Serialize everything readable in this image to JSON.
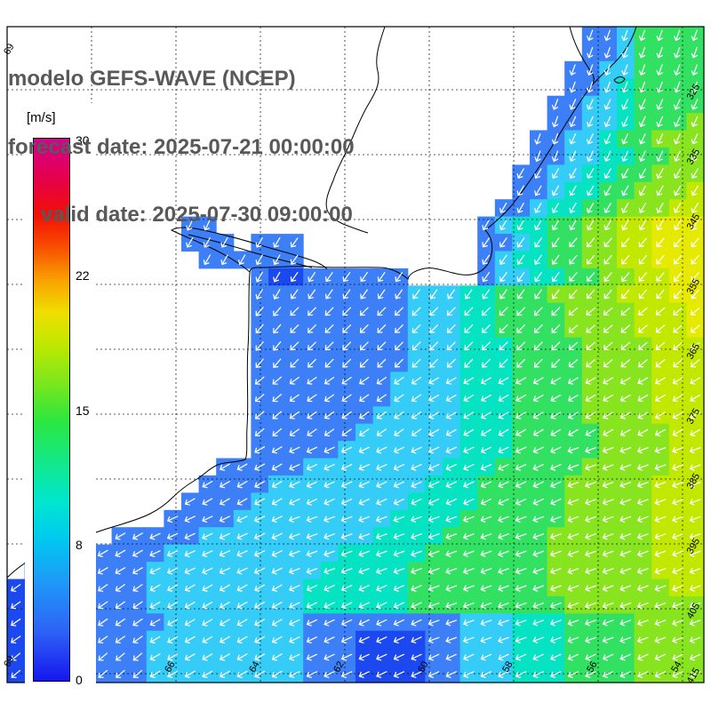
{
  "title": {
    "model_line": "modelo GEFS-WAVE (NCEP)",
    "forecast_line": "forecast date: 2025-07-21 00:00:00",
    "valid_line": "valid date: 2025-07-30 09:00:00"
  },
  "colorbar": {
    "unit_label": "[m/s]",
    "tick_labels": [
      "30",
      "22",
      "15",
      "8",
      "0"
    ],
    "gradient_stops": [
      "#1616ee 0%",
      "#2e62f6 9%",
      "#1f97f8 18%",
      "#00c8f0 26%",
      "#00e6cf 33%",
      "#12e88d 40%",
      "#2ce73e 48%",
      "#7ce71c 55%",
      "#bfe800 62%",
      "#efdf00 68%",
      "#f9a000 74%",
      "#f84e00 80%",
      "#f20f06 86%",
      "#e4004e 93%",
      "#d4008f 100%"
    ]
  },
  "axes": {
    "right_labels": [
      "325",
      "335",
      "345",
      "355",
      "365",
      "375",
      "385",
      "395",
      "405",
      "415"
    ],
    "bottom_labels": [
      "68",
      "66",
      "64",
      "62",
      "60",
      "58",
      "56",
      "54"
    ],
    "left_labels": [
      "69",
      "69"
    ]
  },
  "map": {
    "arrow_color": "#ffffff",
    "palette": {
      "B": "#1c49ef",
      "b": "#3c7ff7",
      "c": "#35cdf7",
      "t": "#06e3c3",
      "g": "#33e162",
      "G": "#87e41f",
      "y": "#c3e800",
      "Y": "#e6e900"
    },
    "grid": {
      "cols": 40,
      "rows": 38,
      "rows_data": [
        ".................................bbcgggg",
        ".................................bbcgggg",
        "................................bbccgggg",
        "................................bbctgggg",
        "...............................bbcctgggg",
        "...............................bbcctgggG",
        "..............................bbcctggGGG",
        "..............................bbccttggGG",
        ".............................bbccttggGGG",
        ".............................bbcttggGGGy",
        "............................bbcttggGGGyy",
        "..........bb...............bcttggGGyyYYY",
        "..........bbb.bbb..........bbctggGGyyYYY",
        "...........bbbbbb..........bcttggGGyyYYY",
        "..............bBBbbbbbb....bccttggGGyyYY",
        "..............bbbbbbbbbcccttgggGGGGyyyYY",
        "..............bbbbbbbbbcccttggggGGGGyyyY",
        "..............bbbbbbbbbcccttggggGGGGyyyY",
        "..............bbbbbbbbbccctttggggGGGGyyy",
        "..............bbbbbbbbbccctttggggGGGGyyy",
        "..............bbbbbbbbcccctttggggGGGGyyy",
        "..............bbbbbbbbcccctttggggGGGGyyy",
        "..............bbbbbbbccccctttggggGGGGyyy",
        "..............bbbbbbcccccctttgggggGGGGyy",
        "..............bbbbbccccccctttgggggGGGGyy",
        "............bbbbbcccccccctttgggggGGGGGyy",
        "...........bbbbccccccccctttgggggGGGGGyyy",
        "..........bbbbcccccccccttttgggggGGGGGyyy",
        ".........bbbbcccccccccttttggggggGGGGGyyy",
        "......bbbbbccccccccccttttggggggGGGGGGyyy",
        "...bbbbbbcccccccccctttttgggggggGGGGGGyyy",
        ".bbbbbbbcccccccccctttttggggggggGGGGGGyyy",
        "BBBbbbbbcccccccccttttttggggggggGGGGGGGyy",
        "BBBbbbbbcccccccccttttttgggggggggGGGGGGGG",
        "BBBBbbbbbccccccccbbbbbbbbbccctttggggGGGG",
        "BBBBbbbbcccccccccbbbBBBBbbccctttggggGGGG",
        "BBBbbbbbcccccccccbbbBBBBbbccctttggggGGGG",
        "BBBbbbbbcccccccccbbbBBBBbbccctttggggGGGG"
      ]
    },
    "arrow_angles": [
      [
        195,
        195,
        195,
        195,
        200
      ],
      [
        200,
        200,
        200,
        200,
        205
      ],
      [
        205,
        205,
        210,
        210,
        210
      ],
      [
        210,
        210,
        215,
        215,
        220
      ],
      [
        215,
        220,
        225,
        225,
        230
      ],
      [
        225,
        230,
        235,
        240,
        240
      ],
      [
        235,
        240,
        245,
        245,
        250
      ],
      [
        240,
        245,
        250,
        250,
        250
      ],
      [
        235,
        240,
        245,
        250,
        250
      ],
      [
        230,
        240,
        245,
        245,
        245
      ]
    ]
  }
}
